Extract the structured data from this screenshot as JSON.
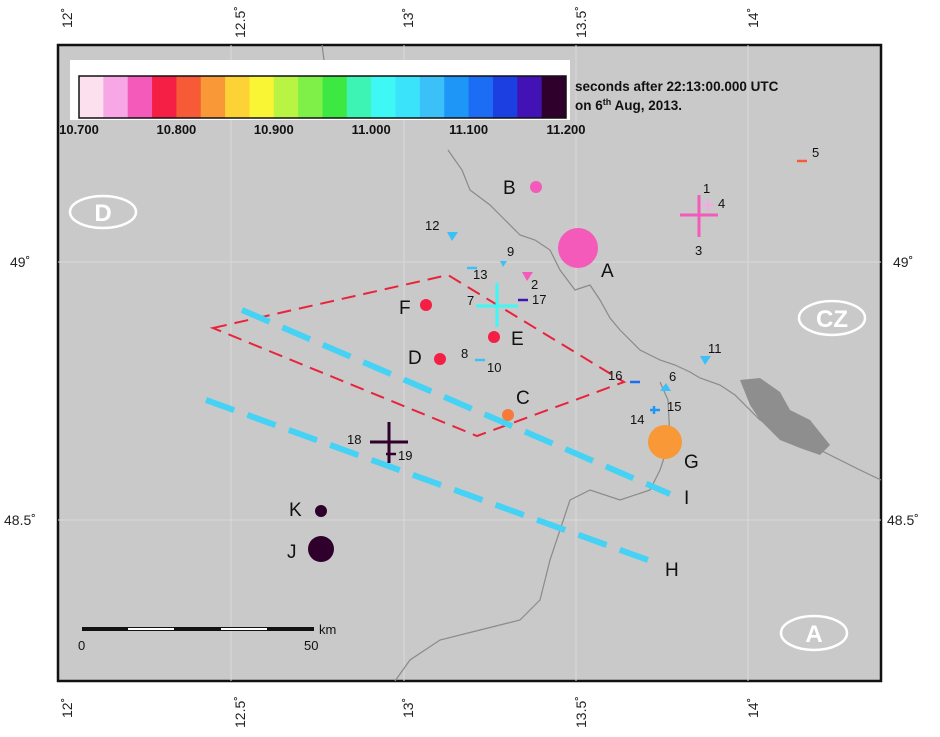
{
  "colorbar": {
    "colors": [
      "#fde0ee",
      "#f7a7e6",
      "#f35ab9",
      "#f51f45",
      "#f65a36",
      "#f99836",
      "#fdd236",
      "#f9f534",
      "#b9f343",
      "#7ef047",
      "#3ee843",
      "#3df4b5",
      "#3ef8f6",
      "#3ae2fa",
      "#3cc0f8",
      "#1d96f7",
      "#1d6cf4",
      "#1b3fe0",
      "#4212b4",
      "#30002c"
    ],
    "ticks": [
      "10.700",
      "10.800",
      "10.900",
      "11.000",
      "11.100",
      "11.200"
    ],
    "caption_line1": "seconds after 22:13:00.000 UTC",
    "caption_line2_pre": "on 6",
    "caption_line2_sup": "th",
    "caption_line2_post": " Aug, 2013."
  },
  "axes": {
    "lon_ticks": [
      "12˚",
      "12.5˚",
      "13˚",
      "13.5˚",
      "14˚"
    ],
    "lat_ticks": [
      "49˚",
      "48.5˚"
    ]
  },
  "country_labels": [
    "D",
    "CZ",
    "A"
  ],
  "scale_bar": {
    "unit": "km",
    "start": "0",
    "end": "50"
  },
  "markers": {
    "circles": [
      {
        "label": "A",
        "color": "#f35ab9"
      },
      {
        "label": "B",
        "color": "#f35ab9"
      },
      {
        "label": "C",
        "color": "#f67b3a"
      },
      {
        "label": "D",
        "color": "#f51f45"
      },
      {
        "label": "E",
        "color": "#f51f45"
      },
      {
        "label": "F",
        "color": "#f51f45"
      },
      {
        "label": "G",
        "color": "#f99836"
      },
      {
        "label": "J",
        "color": "#30002c"
      },
      {
        "label": "K",
        "color": "#30002c"
      }
    ],
    "numbered": [
      "1",
      "2",
      "3",
      "4",
      "5",
      "6",
      "7",
      "8",
      "9",
      "10",
      "11",
      "12",
      "13",
      "14",
      "15",
      "16",
      "17",
      "18",
      "19"
    ],
    "lines": [
      {
        "label": "H",
        "color": "#45d2f5"
      },
      {
        "label": "I",
        "color": "#45d2f5"
      }
    ],
    "polygon_color": "#e8243c"
  }
}
